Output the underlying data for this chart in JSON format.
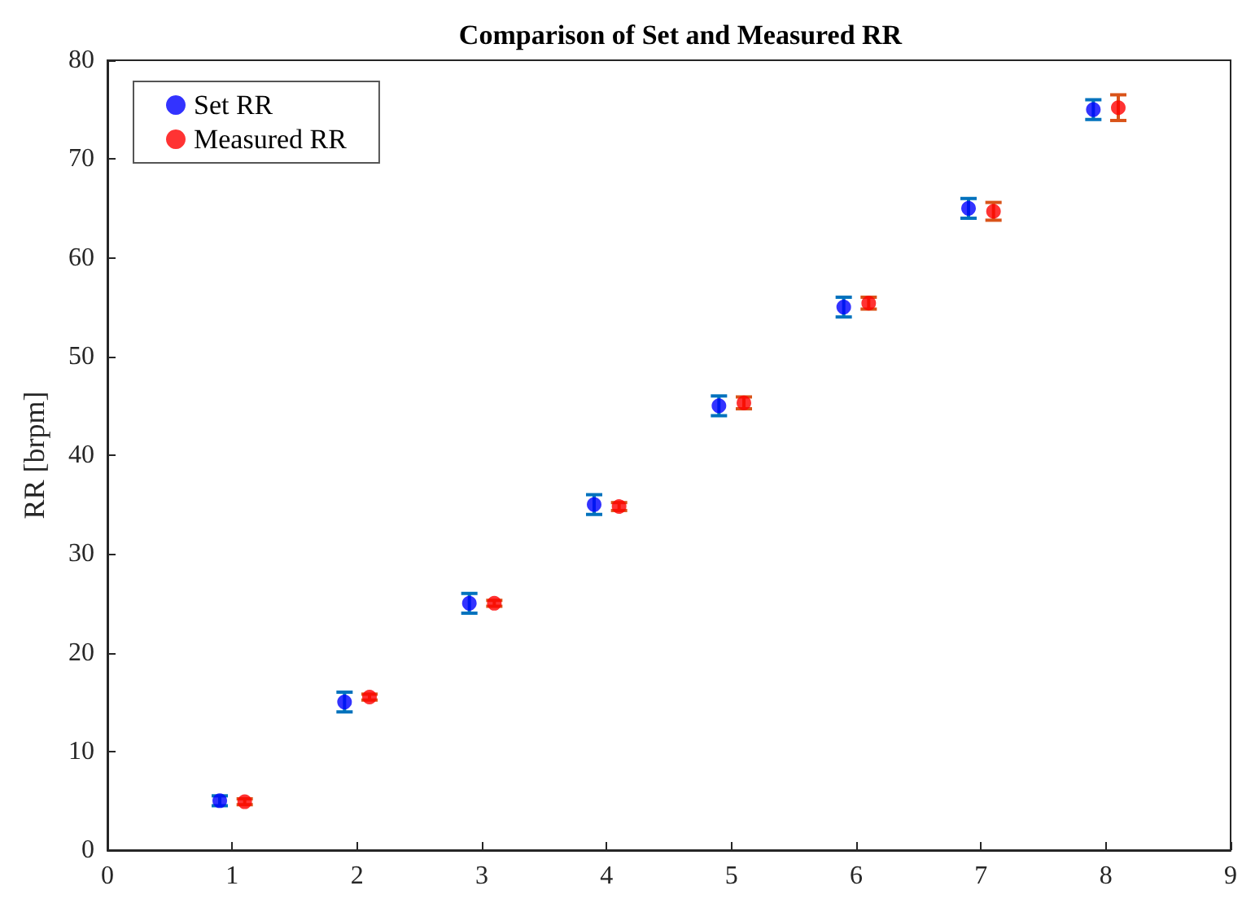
{
  "chart_data": {
    "type": "scatter",
    "title": "Comparison of Set and Measured RR",
    "ylabel": "RR [brpm]",
    "xlim": [
      0,
      9
    ],
    "xticks": [
      0,
      1,
      2,
      3,
      4,
      5,
      6,
      7,
      8,
      9
    ],
    "ylim": [
      0,
      80
    ],
    "yticks": [
      0,
      10,
      20,
      30,
      40,
      50,
      60,
      70,
      80
    ],
    "grid": false,
    "legend": "top left",
    "marker": "circle",
    "series": [
      {
        "name": "Set RR",
        "color": "#0000ff",
        "x": [
          0.9,
          1.9,
          2.9,
          3.9,
          4.9,
          5.9,
          6.9,
          7.9
        ],
        "values": [
          5,
          15,
          25,
          35,
          45,
          55,
          65,
          75
        ],
        "errors": [
          0.5,
          1,
          1,
          1,
          1,
          1,
          1,
          1
        ]
      },
      {
        "name": "Measured RR",
        "color": "#ff0000",
        "x": [
          1.1,
          2.1,
          3.1,
          4.1,
          5.1,
          6.1,
          7.1,
          8.1
        ],
        "values": [
          4.9,
          15.5,
          25.0,
          34.8,
          45.3,
          55.4,
          64.7,
          75.2
        ],
        "errors": [
          0.3,
          0.3,
          0.3,
          0.4,
          0.6,
          0.6,
          0.9,
          1.3
        ]
      }
    ]
  }
}
